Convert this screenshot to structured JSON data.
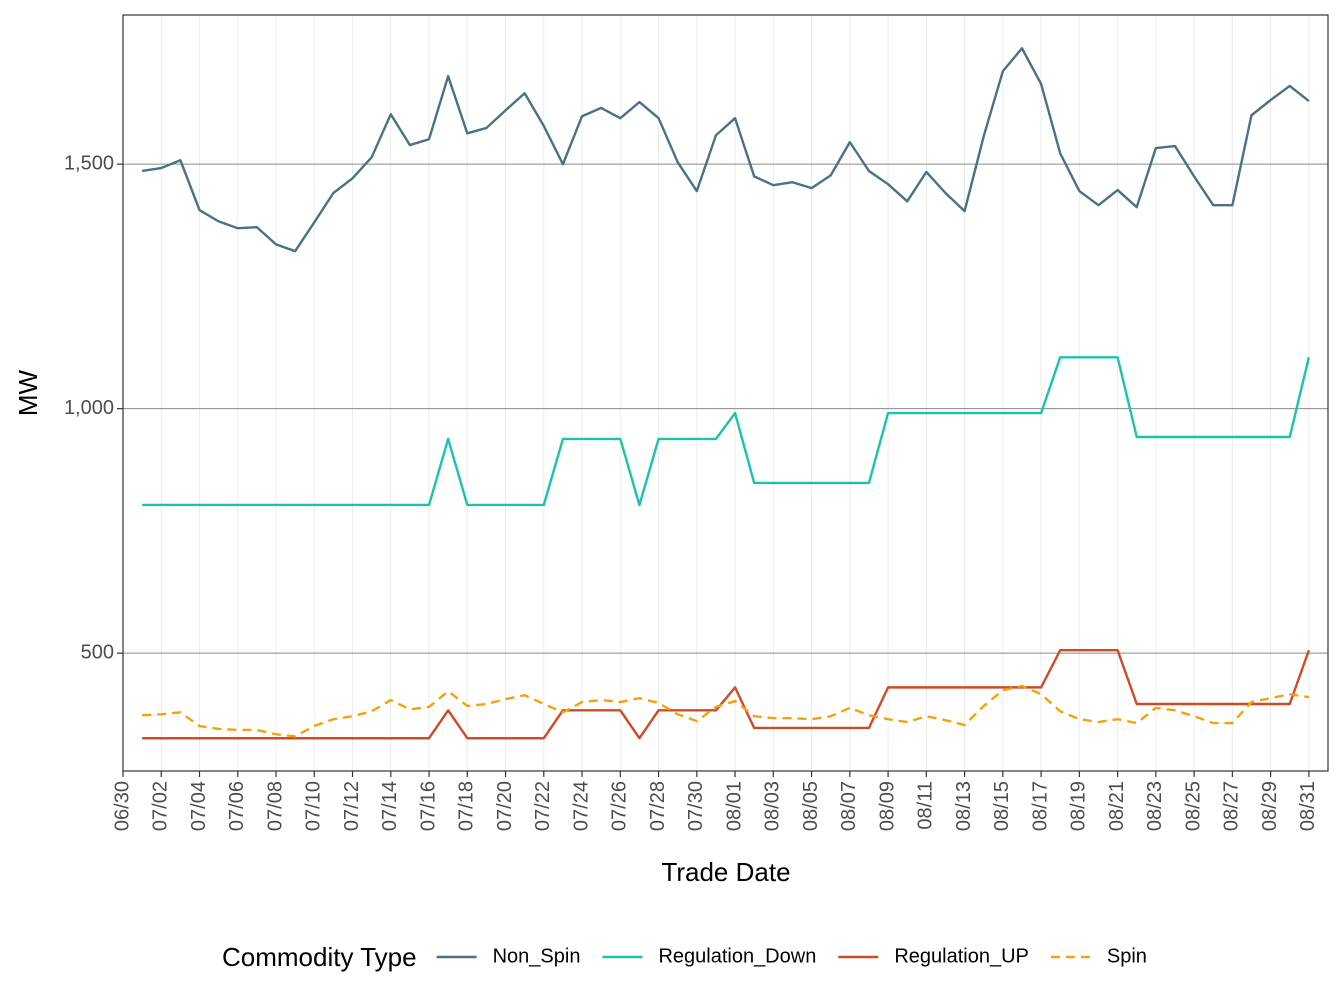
{
  "chart_data": {
    "type": "line",
    "x_label": "Trade Date",
    "y_label": "MW",
    "legend_title": "Commodity Type",
    "legend_position": "bottom",
    "grid": true,
    "x": [
      "07/01",
      "07/02",
      "07/03",
      "07/04",
      "07/05",
      "07/06",
      "07/07",
      "07/08",
      "07/09",
      "07/10",
      "07/11",
      "07/12",
      "07/13",
      "07/14",
      "07/15",
      "07/16",
      "07/17",
      "07/18",
      "07/19",
      "07/20",
      "07/21",
      "07/22",
      "07/23",
      "07/24",
      "07/25",
      "07/26",
      "07/27",
      "07/28",
      "07/29",
      "07/30",
      "07/31",
      "08/01",
      "08/02",
      "08/03",
      "08/04",
      "08/05",
      "08/06",
      "08/07",
      "08/08",
      "08/09",
      "08/10",
      "08/11",
      "08/12",
      "08/13",
      "08/14",
      "08/15",
      "08/16",
      "08/17",
      "08/18",
      "08/19",
      "08/20",
      "08/21",
      "08/22",
      "08/23",
      "08/24",
      "08/25",
      "08/26",
      "08/27",
      "08/28",
      "08/29",
      "08/30",
      "08/31"
    ],
    "xlim": [
      "06/30",
      "09/01"
    ],
    "xticks": [
      "06/30",
      "07/02",
      "07/04",
      "07/06",
      "07/08",
      "07/10",
      "07/12",
      "07/14",
      "07/16",
      "07/18",
      "07/20",
      "07/22",
      "07/24",
      "07/26",
      "07/28",
      "07/30",
      "08/01",
      "08/03",
      "08/05",
      "08/07",
      "08/09",
      "08/11",
      "08/13",
      "08/15",
      "08/17",
      "08/19",
      "08/21",
      "08/23",
      "08/25",
      "08/27",
      "08/29",
      "08/31"
    ],
    "ylim": [
      259,
      1805
    ],
    "yticks": [
      {
        "value": 500,
        "label": "500"
      },
      {
        "value": 1000,
        "label": "1,000"
      },
      {
        "value": 1500,
        "label": "1,500"
      }
    ],
    "series": [
      {
        "name": "Non_Spin",
        "color": "#4b7183",
        "dash": "solid",
        "values": [
          1486,
          1492,
          1508,
          1406,
          1383,
          1369,
          1371,
          1336,
          1322,
          1381,
          1441,
          1471,
          1514,
          1602,
          1539,
          1551,
          1680,
          1563,
          1574,
          1610,
          1645,
          1578,
          1500,
          1598,
          1615,
          1594,
          1627,
          1594,
          1504,
          1445,
          1559,
          1594,
          1475,
          1457,
          1463,
          1451,
          1477,
          1545,
          1486,
          1459,
          1424,
          1484,
          1441,
          1404,
          1557,
          1690,
          1737,
          1664,
          1522,
          1445,
          1416,
          1447,
          1412,
          1533,
          1537,
          1475,
          1416,
          1416,
          1600,
          1631,
          1660,
          1629
        ]
      },
      {
        "name": "Regulation_Down",
        "color": "#1cc3ab",
        "dash": "solid",
        "values": [
          803,
          803,
          803,
          803,
          803,
          803,
          803,
          803,
          803,
          803,
          803,
          803,
          803,
          803,
          803,
          803,
          938,
          803,
          803,
          803,
          803,
          803,
          938,
          938,
          938,
          938,
          803,
          938,
          938,
          938,
          938,
          991,
          848,
          848,
          848,
          848,
          848,
          848,
          848,
          991,
          991,
          991,
          991,
          991,
          991,
          991,
          991,
          991,
          1105,
          1105,
          1105,
          1105,
          942,
          942,
          942,
          942,
          942,
          942,
          942,
          942,
          942,
          1105
        ]
      },
      {
        "name": "Regulation_UP",
        "color": "#cf4a26",
        "dash": "solid",
        "values": [
          326,
          326,
          326,
          326,
          326,
          326,
          326,
          326,
          326,
          326,
          326,
          326,
          326,
          326,
          326,
          326,
          383,
          326,
          326,
          326,
          326,
          326,
          383,
          383,
          383,
          383,
          326,
          383,
          383,
          383,
          383,
          430,
          347,
          347,
          347,
          347,
          347,
          347,
          347,
          430,
          430,
          430,
          430,
          430,
          430,
          430,
          430,
          430,
          506,
          506,
          506,
          506,
          396,
          396,
          396,
          396,
          396,
          396,
          396,
          396,
          396,
          506
        ]
      },
      {
        "name": "Spin",
        "color": "#f5a20a",
        "dash": "dashed",
        "values": [
          373,
          375,
          379,
          351,
          345,
          343,
          343,
          334,
          330,
          351,
          365,
          371,
          381,
          404,
          385,
          390,
          422,
          392,
          396,
          406,
          414,
          396,
          379,
          400,
          404,
          400,
          408,
          398,
          375,
          361,
          390,
          402,
          371,
          367,
          367,
          365,
          371,
          388,
          373,
          365,
          359,
          371,
          363,
          353,
          392,
          424,
          433,
          416,
          381,
          365,
          359,
          365,
          357,
          388,
          383,
          371,
          357,
          357,
          400,
          408,
          416,
          410
        ]
      }
    ]
  }
}
